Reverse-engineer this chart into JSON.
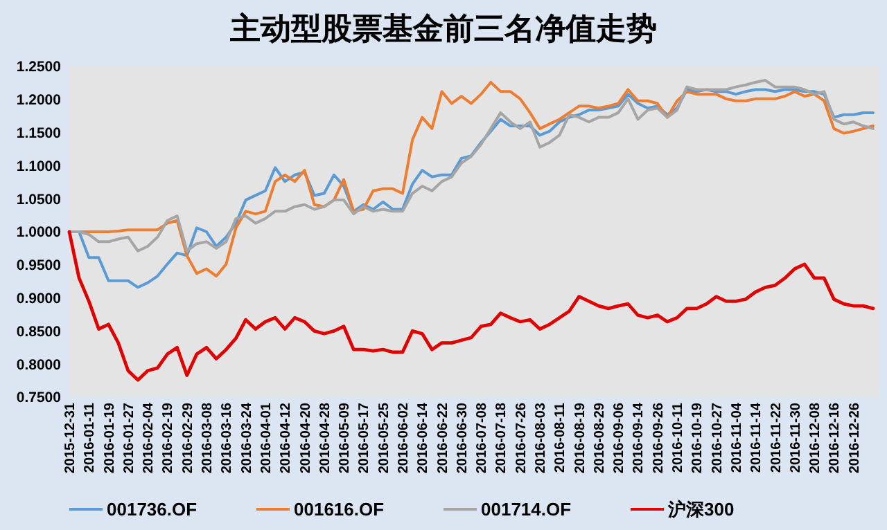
{
  "chart_data": {
    "type": "line",
    "title": "主动型股票基金前三名净值走势",
    "categories": [
      "2015-12-31",
      null,
      "2016-01-11",
      null,
      "2016-01-19",
      null,
      "2016-01-27",
      null,
      "2016-02-04",
      null,
      "2016-02-19",
      null,
      "2016-02-29",
      null,
      "2016-03-08",
      null,
      "2016-03-16",
      null,
      "2016-03-24",
      null,
      "2016-04-01",
      null,
      "2016-04-12",
      null,
      "2016-04-20",
      null,
      "2016-04-28",
      null,
      "2016-05-09",
      null,
      "2016-05-17",
      null,
      "2016-05-25",
      null,
      "2016-06-02",
      null,
      "2016-06-14",
      null,
      "2016-06-22",
      null,
      "2016-06-30",
      null,
      "2016-07-08",
      null,
      "2016-07-18",
      null,
      "2016-07-26",
      null,
      "2016-08-03",
      null,
      "2016-08-11",
      null,
      "2016-08-19",
      null,
      "2016-08-29",
      null,
      "2016-09-06",
      null,
      "2016-09-14",
      null,
      "2016-09-26",
      null,
      "2016-10-11",
      null,
      "2016-10-19",
      null,
      "2016-10-27",
      null,
      "2016-11-04",
      null,
      "2016-11-14",
      null,
      "2016-11-22",
      null,
      "2016-11-30",
      null,
      "2016-12-08",
      null,
      "2016-12-16",
      null,
      "2016-12-26",
      null,
      null
    ],
    "series": [
      {
        "name": "001736.OF",
        "color": "#5b9bd5",
        "values": [
          1.0,
          1.0,
          0.961,
          0.961,
          0.926,
          0.926,
          0.926,
          0.916,
          0.923,
          0.933,
          0.951,
          0.968,
          0.964,
          1.006,
          1.0,
          0.978,
          0.992,
          1.013,
          1.048,
          1.055,
          1.062,
          1.097,
          1.076,
          1.086,
          1.09,
          1.055,
          1.058,
          1.086,
          1.069,
          1.031,
          1.041,
          1.034,
          1.045,
          1.034,
          1.034,
          1.072,
          1.093,
          1.083,
          1.086,
          1.086,
          1.111,
          1.115,
          1.135,
          1.152,
          1.17,
          1.16,
          1.16,
          1.16,
          1.146,
          1.152,
          1.166,
          1.173,
          1.177,
          1.184,
          1.184,
          1.187,
          1.19,
          1.208,
          1.194,
          1.187,
          1.19,
          1.177,
          1.187,
          1.215,
          1.212,
          1.215,
          1.212,
          1.212,
          1.208,
          1.212,
          1.215,
          1.215,
          1.212,
          1.215,
          1.215,
          1.212,
          1.212,
          1.208,
          1.173,
          1.177,
          1.177,
          1.18,
          1.18
        ]
      },
      {
        "name": "001616.OF",
        "color": "#ed7d31",
        "values": [
          1.0,
          1.0,
          1.0,
          1.0,
          1.0,
          1.001,
          1.003,
          1.003,
          1.003,
          1.003,
          1.013,
          1.017,
          0.964,
          0.937,
          0.944,
          0.933,
          0.951,
          1.006,
          1.031,
          1.027,
          1.031,
          1.076,
          1.086,
          1.076,
          1.093,
          1.041,
          1.038,
          1.048,
          1.079,
          1.031,
          1.034,
          1.062,
          1.065,
          1.065,
          1.058,
          1.139,
          1.173,
          1.156,
          1.212,
          1.194,
          1.205,
          1.194,
          1.208,
          1.226,
          1.212,
          1.212,
          1.201,
          1.18,
          1.156,
          1.163,
          1.17,
          1.18,
          1.19,
          1.19,
          1.187,
          1.19,
          1.194,
          1.215,
          1.198,
          1.198,
          1.194,
          1.173,
          1.198,
          1.212,
          1.208,
          1.208,
          1.208,
          1.201,
          1.198,
          1.198,
          1.201,
          1.201,
          1.201,
          1.205,
          1.212,
          1.205,
          1.208,
          1.198,
          1.156,
          1.149,
          1.152,
          1.156,
          1.16
        ]
      },
      {
        "name": "001714.OF",
        "color": "#a5a5a5",
        "values": [
          1.0,
          1.0,
          0.996,
          0.985,
          0.985,
          0.989,
          0.992,
          0.971,
          0.978,
          0.992,
          1.017,
          1.024,
          0.971,
          0.982,
          0.985,
          0.975,
          0.985,
          1.02,
          1.024,
          1.013,
          1.02,
          1.031,
          1.031,
          1.038,
          1.041,
          1.034,
          1.038,
          1.048,
          1.048,
          1.027,
          1.038,
          1.031,
          1.034,
          1.031,
          1.031,
          1.058,
          1.069,
          1.062,
          1.076,
          1.083,
          1.104,
          1.114,
          1.132,
          1.156,
          1.18,
          1.166,
          1.156,
          1.166,
          1.128,
          1.135,
          1.146,
          1.177,
          1.173,
          1.166,
          1.173,
          1.173,
          1.18,
          1.201,
          1.17,
          1.184,
          1.187,
          1.173,
          1.184,
          1.219,
          1.215,
          1.215,
          1.215,
          1.215,
          1.219,
          1.222,
          1.226,
          1.229,
          1.219,
          1.219,
          1.219,
          1.215,
          1.208,
          1.212,
          1.17,
          1.163,
          1.166,
          1.16,
          1.156
        ]
      },
      {
        "name": "沪深300",
        "color": "#e00000",
        "values": [
          1.0,
          0.93,
          0.895,
          0.853,
          0.86,
          0.832,
          0.79,
          0.776,
          0.79,
          0.794,
          0.815,
          0.825,
          0.783,
          0.815,
          0.825,
          0.808,
          0.822,
          0.839,
          0.867,
          0.853,
          0.864,
          0.87,
          0.853,
          0.87,
          0.864,
          0.85,
          0.846,
          0.85,
          0.857,
          0.822,
          0.822,
          0.82,
          0.822,
          0.818,
          0.818,
          0.85,
          0.846,
          0.822,
          0.832,
          0.832,
          0.836,
          0.84,
          0.857,
          0.86,
          0.877,
          0.87,
          0.864,
          0.867,
          0.853,
          0.86,
          0.87,
          0.88,
          0.902,
          0.895,
          0.888,
          0.884,
          0.888,
          0.891,
          0.874,
          0.87,
          0.874,
          0.864,
          0.87,
          0.884,
          0.884,
          0.891,
          0.902,
          0.895,
          0.895,
          0.898,
          0.909,
          0.916,
          0.919,
          0.93,
          0.944,
          0.951,
          0.93,
          0.93,
          0.898,
          0.891,
          0.888,
          0.888,
          0.884
        ]
      }
    ],
    "ylim": [
      0.75,
      1.25
    ],
    "yticks": [
      {
        "value": 0.75,
        "label": "0.7500"
      },
      {
        "value": 0.8,
        "label": "0.8000"
      },
      {
        "value": 0.85,
        "label": "0.8500"
      },
      {
        "value": 0.9,
        "label": "0.9000"
      },
      {
        "value": 0.95,
        "label": "0.9500"
      },
      {
        "value": 1.0,
        "label": "1.0000"
      },
      {
        "value": 1.05,
        "label": "1.0500"
      },
      {
        "value": 1.1,
        "label": "1.1000"
      },
      {
        "value": 1.15,
        "label": "1.1500"
      },
      {
        "value": 1.2,
        "label": "1.2000"
      },
      {
        "value": 1.25,
        "label": "1.2500"
      }
    ],
    "legend": "bottom",
    "marker": "none",
    "line_style": "solid"
  }
}
